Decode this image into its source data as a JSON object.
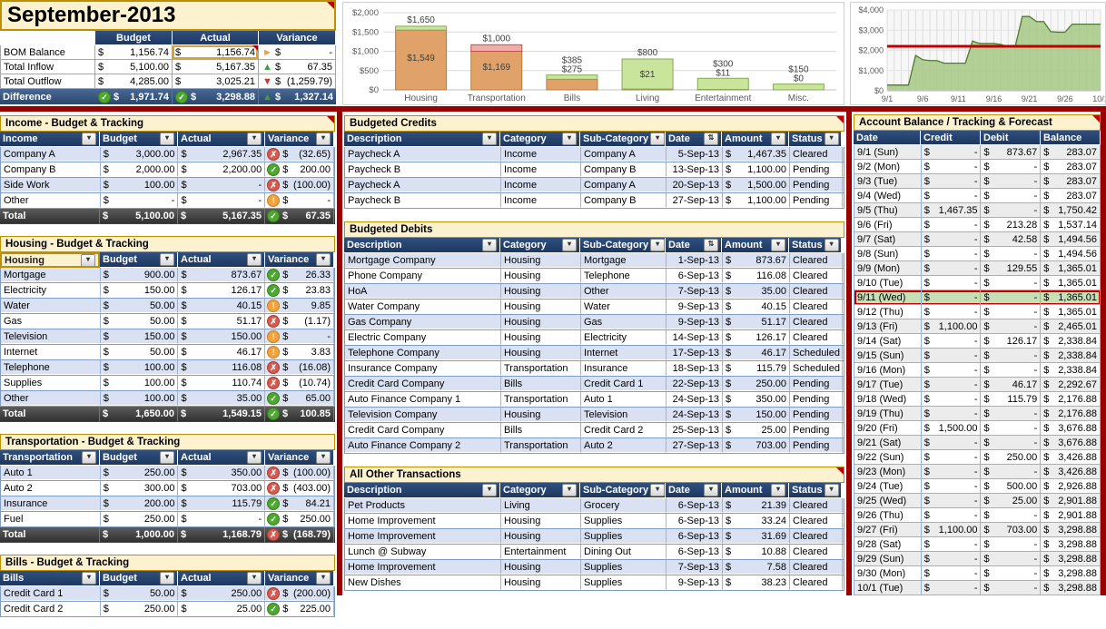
{
  "app_title": "September-2013",
  "colors": {
    "header_navy": "#213A64",
    "section_cream": "#FDF2D0",
    "section_gold": "#BF8F00",
    "frame_red": "#990000",
    "row_alt_blue": "#D9E1F2",
    "today_green": "#C6DFB4",
    "status_green": "#4EA72E",
    "status_red": "#D8594D",
    "status_orange": "#F2A33C"
  },
  "summary": {
    "col_headers": [
      "Budget",
      "Actual",
      "Variance"
    ],
    "rows": [
      {
        "label": "BOM Balance",
        "budget": "1,156.74",
        "actual": "1,156.74",
        "arrow": "right",
        "variance": "-",
        "selected_actual": true
      },
      {
        "label": "Total Inflow",
        "budget": "5,100.00",
        "actual": "5,167.35",
        "arrow": "up",
        "variance": "67.35"
      },
      {
        "label": "Total Outflow",
        "budget": "4,285.00",
        "actual": "3,025.21",
        "arrow": "down",
        "variance": "(1,259.79)"
      }
    ],
    "total_row": {
      "label": "Difference",
      "budget": "1,971.74",
      "actual": "3,298.88",
      "variance": "1,327.14",
      "budget_icon": "check",
      "actual_icon": "check",
      "arrow": "up"
    }
  },
  "budget_tables": [
    {
      "section": "Income - Budget & Tracking",
      "note": true,
      "first_col": "Income",
      "rows": [
        {
          "name": "Company A",
          "budget": "3,000.00",
          "actual": "2,967.35",
          "status": "bad",
          "variance": "(32.65)"
        },
        {
          "name": "Company B",
          "budget": "2,000.00",
          "actual": "2,200.00",
          "status": "check",
          "variance": "200.00"
        },
        {
          "name": "Side Work",
          "budget": "100.00",
          "actual": "-",
          "status": "bad",
          "variance": "(100.00)"
        },
        {
          "name": "Other",
          "budget": "-",
          "actual": "-",
          "status": "warn",
          "variance": "-"
        }
      ],
      "total": {
        "name": "Total",
        "budget": "5,100.00",
        "actual": "5,167.35",
        "status": "check",
        "variance": "67.35"
      }
    },
    {
      "section": "Housing - Budget & Tracking",
      "note": false,
      "first_col": "Housing",
      "first_col_selected": true,
      "rows": [
        {
          "name": "Mortgage",
          "budget": "900.00",
          "actual": "873.67",
          "status": "check",
          "variance": "26.33"
        },
        {
          "name": "Electricity",
          "budget": "150.00",
          "actual": "126.17",
          "status": "check",
          "variance": "23.83"
        },
        {
          "name": "Water",
          "budget": "50.00",
          "actual": "40.15",
          "status": "warn",
          "variance": "9.85"
        },
        {
          "name": "Gas",
          "budget": "50.00",
          "actual": "51.17",
          "status": "bad",
          "variance": "(1.17)"
        },
        {
          "name": "Television",
          "budget": "150.00",
          "actual": "150.00",
          "status": "warn",
          "variance": "-"
        },
        {
          "name": "Internet",
          "budget": "50.00",
          "actual": "46.17",
          "status": "warn",
          "variance": "3.83"
        },
        {
          "name": "Telephone",
          "budget": "100.00",
          "actual": "116.08",
          "status": "bad",
          "variance": "(16.08)"
        },
        {
          "name": "Supplies",
          "budget": "100.00",
          "actual": "110.74",
          "status": "bad",
          "variance": "(10.74)"
        },
        {
          "name": "Other",
          "budget": "100.00",
          "actual": "35.00",
          "status": "check",
          "variance": "65.00"
        }
      ],
      "total": {
        "name": "Total",
        "budget": "1,650.00",
        "actual": "1,549.15",
        "status": "check",
        "variance": "100.85"
      }
    },
    {
      "section": "Transportation - Budget & Tracking",
      "note": false,
      "first_col": "Transportation",
      "rows": [
        {
          "name": "Auto 1",
          "budget": "250.00",
          "actual": "350.00",
          "status": "bad",
          "variance": "(100.00)"
        },
        {
          "name": "Auto 2",
          "budget": "300.00",
          "actual": "703.00",
          "status": "bad",
          "variance": "(403.00)"
        },
        {
          "name": "Insurance",
          "budget": "200.00",
          "actual": "115.79",
          "status": "check",
          "variance": "84.21"
        },
        {
          "name": "Fuel",
          "budget": "250.00",
          "actual": "-",
          "status": "check",
          "variance": "250.00"
        }
      ],
      "total": {
        "name": "Total",
        "budget": "1,000.00",
        "actual": "1,168.79",
        "status": "bad",
        "variance": "(168.79)"
      }
    },
    {
      "section": "Bills - Budget & Tracking",
      "note": false,
      "first_col": "Bills",
      "rows": [
        {
          "name": "Credit Card 1",
          "budget": "50.00",
          "actual": "250.00",
          "status": "bad",
          "variance": "(200.00)"
        },
        {
          "name": "Credit Card 2",
          "budget": "250.00",
          "actual": "25.00",
          "status": "check",
          "variance": "225.00"
        }
      ]
    }
  ],
  "tx_headers": [
    "Description",
    "Category",
    "Sub-Category",
    "Date",
    "Amount",
    "Status"
  ],
  "transaction_tables": [
    {
      "section": "Budgeted Credits",
      "note": true,
      "date_sorted": true,
      "rows": [
        {
          "desc": "Paycheck A",
          "cat": "Income",
          "sub": "Company A",
          "date": "5-Sep-13",
          "amount": "1,467.35",
          "status": "Cleared"
        },
        {
          "desc": "Paycheck B",
          "cat": "Income",
          "sub": "Company B",
          "date": "13-Sep-13",
          "amount": "1,100.00",
          "status": "Pending"
        },
        {
          "desc": "Paycheck A",
          "cat": "Income",
          "sub": "Company A",
          "date": "20-Sep-13",
          "amount": "1,500.00",
          "status": "Pending"
        },
        {
          "desc": "Paycheck B",
          "cat": "Income",
          "sub": "Company B",
          "date": "27-Sep-13",
          "amount": "1,100.00",
          "status": "Pending"
        }
      ]
    },
    {
      "section": "Budgeted Debits",
      "note": false,
      "date_sorted": true,
      "rows": [
        {
          "desc": "Mortgage Company",
          "cat": "Housing",
          "sub": "Mortgage",
          "date": "1-Sep-13",
          "amount": "873.67",
          "status": "Cleared"
        },
        {
          "desc": "Phone Company",
          "cat": "Housing",
          "sub": "Telephone",
          "date": "6-Sep-13",
          "amount": "116.08",
          "status": "Cleared"
        },
        {
          "desc": "HoA",
          "cat": "Housing",
          "sub": "Other",
          "date": "7-Sep-13",
          "amount": "35.00",
          "status": "Cleared"
        },
        {
          "desc": "Water Company",
          "cat": "Housing",
          "sub": "Water",
          "date": "9-Sep-13",
          "amount": "40.15",
          "status": "Cleared"
        },
        {
          "desc": "Gas Company",
          "cat": "Housing",
          "sub": "Gas",
          "date": "9-Sep-13",
          "amount": "51.17",
          "status": "Cleared"
        },
        {
          "desc": "Electric Company",
          "cat": "Housing",
          "sub": "Electricity",
          "date": "14-Sep-13",
          "amount": "126.17",
          "status": "Cleared"
        },
        {
          "desc": "Telephone Company",
          "cat": "Housing",
          "sub": "Internet",
          "date": "17-Sep-13",
          "amount": "46.17",
          "status": "Scheduled"
        },
        {
          "desc": "Insurance Company",
          "cat": "Transportation",
          "sub": "Insurance",
          "date": "18-Sep-13",
          "amount": "115.79",
          "status": "Scheduled"
        },
        {
          "desc": "Credit Card Company",
          "cat": "Bills",
          "sub": "Credit Card 1",
          "date": "22-Sep-13",
          "amount": "250.00",
          "status": "Pending"
        },
        {
          "desc": "Auto Finance Company 1",
          "cat": "Transportation",
          "sub": "Auto 1",
          "date": "24-Sep-13",
          "amount": "350.00",
          "status": "Pending"
        },
        {
          "desc": "Television Company",
          "cat": "Housing",
          "sub": "Television",
          "date": "24-Sep-13",
          "amount": "150.00",
          "status": "Pending"
        },
        {
          "desc": "Credit Card Company",
          "cat": "Bills",
          "sub": "Credit Card 2",
          "date": "25-Sep-13",
          "amount": "25.00",
          "status": "Pending"
        },
        {
          "desc": "Auto Finance Company 2",
          "cat": "Transportation",
          "sub": "Auto 2",
          "date": "27-Sep-13",
          "amount": "703.00",
          "status": "Pending"
        }
      ]
    },
    {
      "section": "All Other Transactions",
      "note": true,
      "date_sorted": false,
      "rows": [
        {
          "desc": "Pet Products",
          "cat": "Living",
          "sub": "Grocery",
          "date": "6-Sep-13",
          "amount": "21.39",
          "status": "Cleared"
        },
        {
          "desc": "Home Improvement",
          "cat": "Housing",
          "sub": "Supplies",
          "date": "6-Sep-13",
          "amount": "33.24",
          "status": "Cleared"
        },
        {
          "desc": "Home Improvement",
          "cat": "Housing",
          "sub": "Supplies",
          "date": "6-Sep-13",
          "amount": "31.69",
          "status": "Cleared"
        },
        {
          "desc": "Lunch @ Subway",
          "cat": "Entertainment",
          "sub": "Dining Out",
          "date": "6-Sep-13",
          "amount": "10.88",
          "status": "Cleared"
        },
        {
          "desc": "Home Improvement",
          "cat": "Housing",
          "sub": "Supplies",
          "date": "7-Sep-13",
          "amount": "7.58",
          "status": "Cleared"
        },
        {
          "desc": "New Dishes",
          "cat": "Housing",
          "sub": "Supplies",
          "date": "9-Sep-13",
          "amount": "38.23",
          "status": "Cleared"
        }
      ]
    }
  ],
  "balance_table": {
    "section": "Account Balance / Tracking & Forecast",
    "note": true,
    "headers": [
      "Date",
      "Credit",
      "Debit",
      "Balance"
    ],
    "rows": [
      {
        "date": "9/1 (Sun)",
        "credit": "-",
        "debit": "873.67",
        "balance": "283.07"
      },
      {
        "date": "9/2 (Mon)",
        "credit": "-",
        "debit": "-",
        "balance": "283.07"
      },
      {
        "date": "9/3 (Tue)",
        "credit": "-",
        "debit": "-",
        "balance": "283.07"
      },
      {
        "date": "9/4 (Wed)",
        "credit": "-",
        "debit": "-",
        "balance": "283.07"
      },
      {
        "date": "9/5 (Thu)",
        "credit": "1,467.35",
        "debit": "-",
        "balance": "1,750.42"
      },
      {
        "date": "9/6 (Fri)",
        "credit": "-",
        "debit": "213.28",
        "balance": "1,537.14"
      },
      {
        "date": "9/7 (Sat)",
        "credit": "-",
        "debit": "42.58",
        "balance": "1,494.56"
      },
      {
        "date": "9/8 (Sun)",
        "credit": "-",
        "debit": "-",
        "balance": "1,494.56"
      },
      {
        "date": "9/9 (Mon)",
        "credit": "-",
        "debit": "129.55",
        "balance": "1,365.01"
      },
      {
        "date": "9/10 (Tue)",
        "credit": "-",
        "debit": "-",
        "balance": "1,365.01"
      },
      {
        "date": "9/11 (Wed)",
        "credit": "-",
        "debit": "-",
        "balance": "1,365.01",
        "today": true
      },
      {
        "date": "9/12 (Thu)",
        "credit": "-",
        "debit": "-",
        "balance": "1,365.01"
      },
      {
        "date": "9/13 (Fri)",
        "credit": "1,100.00",
        "debit": "-",
        "balance": "2,465.01"
      },
      {
        "date": "9/14 (Sat)",
        "credit": "-",
        "debit": "126.17",
        "balance": "2,338.84"
      },
      {
        "date": "9/15 (Sun)",
        "credit": "-",
        "debit": "-",
        "balance": "2,338.84"
      },
      {
        "date": "9/16 (Mon)",
        "credit": "-",
        "debit": "-",
        "balance": "2,338.84"
      },
      {
        "date": "9/17 (Tue)",
        "credit": "-",
        "debit": "46.17",
        "balance": "2,292.67"
      },
      {
        "date": "9/18 (Wed)",
        "credit": "-",
        "debit": "115.79",
        "balance": "2,176.88"
      },
      {
        "date": "9/19 (Thu)",
        "credit": "-",
        "debit": "-",
        "balance": "2,176.88"
      },
      {
        "date": "9/20 (Fri)",
        "credit": "1,500.00",
        "debit": "-",
        "balance": "3,676.88"
      },
      {
        "date": "9/21 (Sat)",
        "credit": "-",
        "debit": "-",
        "balance": "3,676.88"
      },
      {
        "date": "9/22 (Sun)",
        "credit": "-",
        "debit": "250.00",
        "balance": "3,426.88"
      },
      {
        "date": "9/23 (Mon)",
        "credit": "-",
        "debit": "-",
        "balance": "3,426.88"
      },
      {
        "date": "9/24 (Tue)",
        "credit": "-",
        "debit": "500.00",
        "balance": "2,926.88"
      },
      {
        "date": "9/25 (Wed)",
        "credit": "-",
        "debit": "25.00",
        "balance": "2,901.88"
      },
      {
        "date": "9/26 (Thu)",
        "credit": "-",
        "debit": "-",
        "balance": "2,901.88"
      },
      {
        "date": "9/27 (Fri)",
        "credit": "1,100.00",
        "debit": "703.00",
        "balance": "3,298.88"
      },
      {
        "date": "9/28 (Sat)",
        "credit": "-",
        "debit": "-",
        "balance": "3,298.88"
      },
      {
        "date": "9/29 (Sun)",
        "credit": "-",
        "debit": "-",
        "balance": "3,298.88"
      },
      {
        "date": "9/30 (Mon)",
        "credit": "-",
        "debit": "-",
        "balance": "3,298.88"
      },
      {
        "date": "10/1 (Tue)",
        "credit": "-",
        "debit": "-",
        "balance": "3,298.88"
      }
    ]
  },
  "chart_data": [
    {
      "type": "bar",
      "title": "",
      "categories": [
        "Housing",
        "Transportation",
        "Bills",
        "Living",
        "Entertainment",
        "Misc."
      ],
      "series": [
        {
          "name": "Budget",
          "values": [
            1650,
            1000,
            385,
            800,
            300,
            150
          ]
        },
        {
          "name": "Actual",
          "values": [
            1549,
            1169,
            275,
            21,
            11,
            0
          ]
        }
      ],
      "budget_labels": [
        "$1,650",
        "$1,000",
        "$385",
        "$800",
        "$300",
        "$150"
      ],
      "actual_labels": [
        "$1,549",
        "$1,169",
        "$275",
        "$21",
        "$11",
        "$0"
      ],
      "ylim": [
        0,
        2000
      ],
      "yticks": [
        0,
        500,
        1000,
        1500,
        2000
      ],
      "ytick_labels": [
        "$0",
        "$500",
        "$1,000",
        "$1,500",
        "$2,000"
      ],
      "grid": true,
      "legend": "none"
    },
    {
      "type": "area",
      "title": "",
      "x_labels": [
        "9/1",
        "9/6",
        "9/11",
        "9/16",
        "9/21",
        "9/26",
        "10/1"
      ],
      "values": [
        283.07,
        283.07,
        283.07,
        283.07,
        1750.42,
        1537.14,
        1494.56,
        1494.56,
        1365.01,
        1365.01,
        1365.01,
        1365.01,
        2465.01,
        2338.84,
        2338.84,
        2338.84,
        2292.67,
        2176.88,
        2176.88,
        3676.88,
        3676.88,
        3426.88,
        3426.88,
        2926.88,
        2901.88,
        2901.88,
        3298.88,
        3298.88,
        3298.88,
        3298.88,
        3298.88
      ],
      "ylim": [
        0,
        4000
      ],
      "yticks": [
        0,
        1000,
        2000,
        3000,
        4000
      ],
      "ytick_labels": [
        "$0",
        "$1,000",
        "$2,000",
        "$3,000",
        "$4,000"
      ],
      "reference_line": 2200,
      "grid": true,
      "legend": "none"
    }
  ]
}
